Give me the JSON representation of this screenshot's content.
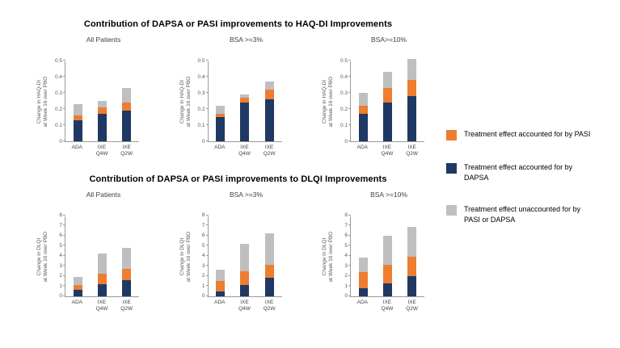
{
  "legend": {
    "items": [
      {
        "label": "Treatment effect accounted for by PASI",
        "color": "#ED7D31"
      },
      {
        "label": "Treatment effect accounted for by DAPSA",
        "color": "#1F3864"
      },
      {
        "label": "Treatment effect unaccounted for by PASI or DAPSA",
        "color": "#BFBFBF"
      }
    ]
  },
  "chart_data": [
    {
      "type": "bar",
      "stacked": true,
      "title": "Contribution of DAPSA or PASI improvements to HAQ-DI Improvements",
      "ylabel": "Change in HAQ-DI\nat Week 16 over PBO",
      "ylim": [
        0,
        0.5
      ],
      "yticks": [
        0,
        0.1,
        0.2,
        0.3,
        0.4,
        0.5
      ],
      "categories": [
        "ADA",
        "IXE Q4W",
        "IXE Q2W"
      ],
      "series_meta": [
        {
          "key": "dapsa",
          "name": "Treatment effect accounted for by DAPSA",
          "color": "#1F3864"
        },
        {
          "key": "pasi",
          "name": "Treatment effect accounted for by PASI",
          "color": "#ED7D31"
        },
        {
          "key": "unaccounted",
          "name": "Treatment effect unaccounted for by PASI or DAPSA",
          "color": "#BFBFBF"
        }
      ],
      "panels": [
        {
          "subtitle": "All Patients",
          "values": [
            [
              0.13,
              0.17,
              0.19
            ],
            [
              0.03,
              0.04,
              0.05
            ],
            [
              0.07,
              0.04,
              0.09
            ]
          ]
        },
        {
          "subtitle": "BSA >=3%",
          "values": [
            [
              0.15,
              0.24,
              0.26
            ],
            [
              0.02,
              0.03,
              0.06
            ],
            [
              0.05,
              0.02,
              0.05
            ]
          ]
        },
        {
          "subtitle": "BSA>=10%",
          "values": [
            [
              0.17,
              0.24,
              0.28
            ],
            [
              0.05,
              0.09,
              0.1
            ],
            [
              0.08,
              0.1,
              0.13
            ]
          ]
        }
      ]
    },
    {
      "type": "bar",
      "stacked": true,
      "title": "Contribution of DAPSA or PASI improvements to DLQI Improvements",
      "ylabel": "Change in DLQI\nat Week 16 over PBO",
      "ylim": [
        0,
        8
      ],
      "yticks": [
        0,
        1,
        2,
        3,
        4,
        5,
        6,
        7,
        8
      ],
      "categories": [
        "ADA",
        "IXE Q4W",
        "IXE Q2W"
      ],
      "series_meta": [
        {
          "key": "dapsa",
          "name": "Treatment effect accounted for by DAPSA",
          "color": "#1F3864"
        },
        {
          "key": "pasi",
          "name": "Treatment effect accounted for by PASI",
          "color": "#ED7D31"
        },
        {
          "key": "unaccounted",
          "name": "Treatment effect unaccounted for by PASI or DAPSA",
          "color": "#BFBFBF"
        }
      ],
      "panels": [
        {
          "subtitle": "All Patients",
          "values": [
            [
              0.6,
              1.2,
              1.6
            ],
            [
              0.5,
              1.0,
              1.1
            ],
            [
              0.8,
              2.0,
              2.1
            ]
          ]
        },
        {
          "subtitle": "BSA >=3%",
          "values": [
            [
              0.5,
              1.1,
              1.8
            ],
            [
              1.0,
              1.4,
              1.3
            ],
            [
              1.1,
              2.7,
              3.1
            ]
          ]
        },
        {
          "subtitle": "BSA >=10%",
          "values": [
            [
              0.8,
              1.3,
              2.0
            ],
            [
              1.6,
              1.8,
              1.9
            ],
            [
              1.4,
              2.9,
              3.0
            ]
          ]
        }
      ]
    }
  ]
}
